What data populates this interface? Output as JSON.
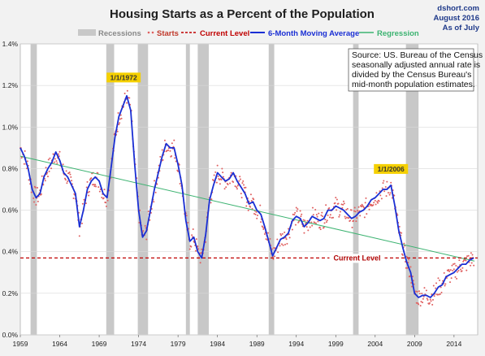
{
  "header": {
    "title": "Housing Starts as a Percent of the Population",
    "source_lines": [
      "dshort.com",
      "August 2016",
      "As of July"
    ]
  },
  "legend": {
    "recessions": "Recessions",
    "starts": "Starts",
    "current_level": "Current Level",
    "moving_average": "6-Month Moving Average",
    "regression": "Regression"
  },
  "note": {
    "lines": [
      "Source: US. Bureau of the Census",
      "seasonally adjusted annual rate is",
      "divided by the Census Bureau's",
      "mid-month population estimates."
    ]
  },
  "annotations": {
    "peak_1972": "1/1/1972",
    "peak_2006": "1/1/2006",
    "current_level_label": "Current Level"
  },
  "colors": {
    "starts": "#e06060",
    "moving_average": "#1a2fd4",
    "regression": "#3cb371",
    "current_level": "#c00000",
    "recession": "#c8c8c8",
    "annotation_bg": "#f5d000"
  },
  "chart_data": {
    "type": "line",
    "title": "Housing Starts as a Percent of the Population",
    "xlabel": "",
    "ylabel": "",
    "xlim": [
      1959,
      2017
    ],
    "ylim": [
      0,
      1.4
    ],
    "y_tick_values": [
      0,
      0.2,
      0.4,
      0.6,
      0.8,
      1.0,
      1.2,
      1.4
    ],
    "y_ticks": [
      "0.0%",
      "0.2%",
      "0.4%",
      "0.6%",
      "0.8%",
      "1.0%",
      "1.2%",
      "1.4%"
    ],
    "x_tick_values": [
      1959,
      1964,
      1969,
      1974,
      1979,
      1984,
      1989,
      1994,
      1999,
      2004,
      2009,
      2014
    ],
    "x_ticks": [
      "1959",
      "1964",
      "1969",
      "1974",
      "1979",
      "1984",
      "1989",
      "1994",
      "1999",
      "2004",
      "2009",
      "2014"
    ],
    "grid": true,
    "legend_position": "top",
    "recessions": [
      [
        1960.3,
        1961.1
      ],
      [
        1969.9,
        1970.9
      ],
      [
        1973.9,
        1975.2
      ],
      [
        1980.0,
        1980.5
      ],
      [
        1981.5,
        1982.9
      ],
      [
        1990.5,
        1991.2
      ],
      [
        2001.2,
        2001.9
      ],
      [
        2007.9,
        2009.5
      ]
    ],
    "current_level": 0.37,
    "regression": {
      "x": [
        1959,
        2016.6
      ],
      "y": [
        0.86,
        0.355
      ]
    },
    "series": [
      {
        "name": "6-Month Moving Average",
        "x": [
          1959,
          1959.5,
          1960,
          1960.5,
          1961,
          1961.5,
          1962,
          1962.5,
          1963,
          1963.5,
          1964,
          1964.5,
          1965,
          1965.5,
          1966,
          1966.5,
          1967,
          1967.5,
          1968,
          1968.5,
          1969,
          1969.5,
          1970,
          1970.5,
          1971,
          1971.5,
          1972,
          1972.5,
          1973,
          1973.5,
          1974,
          1974.5,
          1975,
          1975.5,
          1976,
          1976.5,
          1977,
          1977.5,
          1978,
          1978.5,
          1979,
          1979.5,
          1980,
          1980.5,
          1981,
          1981.5,
          1982,
          1982.5,
          1983,
          1983.5,
          1984,
          1984.5,
          1985,
          1985.5,
          1986,
          1986.5,
          1987,
          1987.5,
          1988,
          1988.5,
          1989,
          1989.5,
          1990,
          1990.5,
          1991,
          1991.5,
          1992,
          1992.5,
          1993,
          1993.5,
          1994,
          1994.5,
          1995,
          1995.5,
          1996,
          1996.5,
          1997,
          1997.5,
          1998,
          1998.5,
          1999,
          1999.5,
          2000,
          2000.5,
          2001,
          2001.5,
          2002,
          2002.5,
          2003,
          2003.5,
          2004,
          2004.5,
          2005,
          2005.5,
          2006,
          2006.5,
          2007,
          2007.5,
          2008,
          2008.5,
          2009,
          2009.5,
          2010,
          2010.5,
          2011,
          2011.5,
          2012,
          2012.5,
          2013,
          2013.5,
          2014,
          2014.5,
          2015,
          2015.5,
          2016,
          2016.5
        ],
        "values": [
          0.9,
          0.86,
          0.8,
          0.7,
          0.66,
          0.68,
          0.76,
          0.8,
          0.83,
          0.88,
          0.84,
          0.78,
          0.76,
          0.72,
          0.68,
          0.52,
          0.6,
          0.7,
          0.74,
          0.76,
          0.74,
          0.68,
          0.66,
          0.8,
          0.95,
          1.05,
          1.1,
          1.15,
          1.08,
          0.82,
          0.6,
          0.47,
          0.5,
          0.6,
          0.7,
          0.78,
          0.86,
          0.92,
          0.9,
          0.9,
          0.82,
          0.72,
          0.55,
          0.45,
          0.47,
          0.4,
          0.37,
          0.48,
          0.65,
          0.72,
          0.78,
          0.76,
          0.74,
          0.75,
          0.78,
          0.74,
          0.71,
          0.68,
          0.63,
          0.64,
          0.6,
          0.58,
          0.52,
          0.45,
          0.38,
          0.42,
          0.46,
          0.47,
          0.49,
          0.55,
          0.57,
          0.56,
          0.52,
          0.54,
          0.57,
          0.56,
          0.55,
          0.56,
          0.6,
          0.6,
          0.62,
          0.61,
          0.6,
          0.58,
          0.56,
          0.57,
          0.59,
          0.6,
          0.62,
          0.65,
          0.66,
          0.68,
          0.7,
          0.7,
          0.72,
          0.62,
          0.5,
          0.42,
          0.35,
          0.3,
          0.2,
          0.18,
          0.19,
          0.19,
          0.18,
          0.2,
          0.23,
          0.24,
          0.28,
          0.29,
          0.3,
          0.32,
          0.34,
          0.34,
          0.36,
          0.37
        ]
      }
    ],
    "peaks": [
      {
        "label": "1/1/1972",
        "x": 1972.1,
        "y": 1.16
      },
      {
        "label": "1/1/2006",
        "x": 2006.0,
        "y": 0.72
      }
    ]
  }
}
